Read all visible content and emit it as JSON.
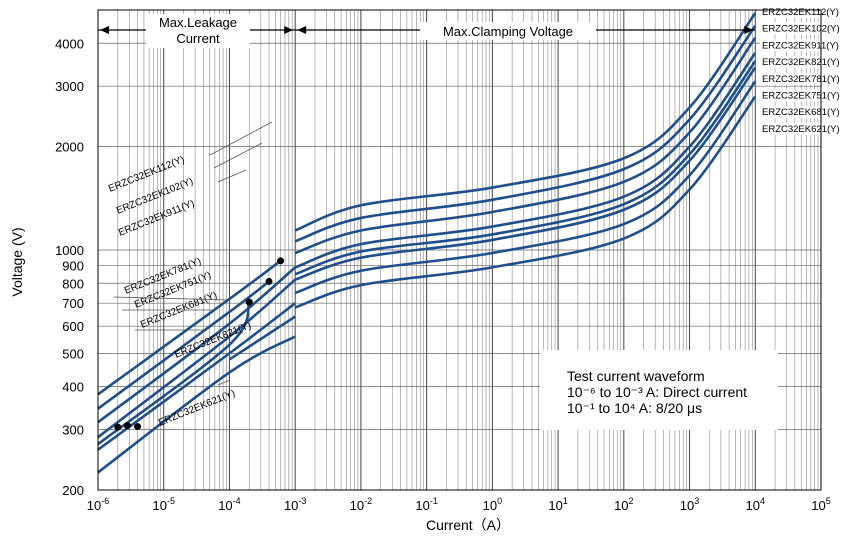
{
  "chart_data": {
    "type": "line",
    "title": "",
    "xlabel": "Current（A）",
    "ylabel": "Voltage (V)",
    "x_scale": "log",
    "y_scale": "log",
    "xlim": [
      1e-06,
      100000
    ],
    "ylim": [
      200,
      5000
    ],
    "x_ticks": [
      {
        "value": 1e-06,
        "base": "10",
        "exp": "-6"
      },
      {
        "value": 1e-05,
        "base": "10",
        "exp": "-5"
      },
      {
        "value": 0.0001,
        "base": "10",
        "exp": "-4"
      },
      {
        "value": 0.001,
        "base": "10",
        "exp": "-3"
      },
      {
        "value": 0.01,
        "base": "10",
        "exp": "-2"
      },
      {
        "value": 0.1,
        "base": "10",
        "exp": "-1"
      },
      {
        "value": 1,
        "base": "10",
        "exp": "0"
      },
      {
        "value": 10,
        "base": "10",
        "exp": "1"
      },
      {
        "value": 100,
        "base": "10",
        "exp": "2"
      },
      {
        "value": 1000,
        "base": "10",
        "exp": "3"
      },
      {
        "value": 10000,
        "base": "10",
        "exp": "4"
      },
      {
        "value": 100000,
        "base": "10",
        "exp": "5"
      }
    ],
    "y_ticks": [
      200,
      300,
      400,
      500,
      600,
      700,
      800,
      900,
      1000,
      2000,
      3000,
      4000
    ],
    "grid": true,
    "line_color": "#1f4e8c",
    "region_labels": {
      "leakage_line1": "Max.Leakage",
      "leakage_line2": "Current",
      "clamping": "Max.Clamping Voltage"
    },
    "note": {
      "line1": "Test current waveform",
      "line2": "10⁻⁶ to 10⁻³ A: Direct current",
      "line3": "10⁻¹ to 10⁴ A: 8/20 μs"
    },
    "leakage_series": [
      {
        "name": "ERZC32EK112(Y)",
        "points": [
          [
            1e-06,
            380
          ],
          [
            0.0001,
            720
          ],
          [
            0.0006,
            930
          ]
        ]
      },
      {
        "name": "ERZC32EK102(Y)",
        "points": [
          [
            1e-06,
            345
          ],
          [
            0.0001,
            660
          ],
          [
            0.0004,
            810
          ]
        ]
      },
      {
        "name": "ERZC32EK911(Y)",
        "points": [
          [
            1e-06,
            315
          ],
          [
            0.0001,
            610
          ],
          [
            0.001,
            890
          ]
        ]
      },
      {
        "name": "ERZC32EK781(Y)",
        "points": [
          [
            1e-06,
            285
          ],
          [
            0.0001,
            560
          ],
          [
            0.001,
            820
          ]
        ]
      },
      {
        "name": "ERZC32EK751(Y)",
        "points": [
          [
            1e-06,
            272
          ],
          [
            0.0001,
            530
          ],
          [
            0.0002,
            705
          ]
        ]
      },
      {
        "name": "ERZC32EK681(Y)",
        "points": [
          [
            1e-06,
            262
          ],
          [
            0.0001,
            500
          ],
          [
            0.001,
            700
          ]
        ]
      },
      {
        "name": "ERZC32EK821(Y)",
        "points": [
          [
            0.0001,
            480
          ],
          [
            0.001,
            640
          ]
        ]
      },
      {
        "name": "ERZC32EK621(Y)",
        "points": [
          [
            1e-06,
            225
          ],
          [
            0.0001,
            440
          ],
          [
            0.001,
            560
          ]
        ]
      }
    ],
    "leakage_dots": [
      [
        2e-06,
        305
      ],
      [
        2.8e-06,
        308
      ],
      [
        4e-06,
        306
      ],
      [
        0.0002,
        705
      ],
      [
        0.0004,
        810
      ],
      [
        0.0006,
        930
      ]
    ],
    "clamping_series": [
      {
        "name": "ERZC32EK112(Y)",
        "points": [
          [
            0.001,
            1140
          ],
          [
            0.01,
            1350
          ],
          [
            1,
            1520
          ],
          [
            100,
            1850
          ],
          [
            1000,
            2600
          ],
          [
            10000,
            4900
          ]
        ]
      },
      {
        "name": "ERZC32EK102(Y)",
        "points": [
          [
            0.001,
            1060
          ],
          [
            0.01,
            1240
          ],
          [
            1,
            1400
          ],
          [
            100,
            1720
          ],
          [
            1000,
            2400
          ],
          [
            10000,
            4500
          ]
        ]
      },
      {
        "name": "ERZC32EK911(Y)",
        "points": [
          [
            0.001,
            980
          ],
          [
            0.01,
            1140
          ],
          [
            1,
            1290
          ],
          [
            100,
            1580
          ],
          [
            1000,
            2200
          ],
          [
            10000,
            4150
          ]
        ]
      },
      {
        "name": "ERZC32EK821(Y)",
        "points": [
          [
            0.001,
            890
          ],
          [
            0.01,
            1040
          ],
          [
            1,
            1170
          ],
          [
            100,
            1430
          ],
          [
            1000,
            2000
          ],
          [
            10000,
            3750
          ]
        ]
      },
      {
        "name": "ERZC32EK781(Y)",
        "points": [
          [
            0.001,
            850
          ],
          [
            0.01,
            990
          ],
          [
            1,
            1110
          ],
          [
            100,
            1360
          ],
          [
            1000,
            1900
          ],
          [
            10000,
            3550
          ]
        ]
      },
      {
        "name": "ERZC32EK751(Y)",
        "points": [
          [
            0.001,
            820
          ],
          [
            0.01,
            950
          ],
          [
            1,
            1070
          ],
          [
            100,
            1310
          ],
          [
            1000,
            1820
          ],
          [
            10000,
            3400
          ]
        ]
      },
      {
        "name": "ERZC32EK681(Y)",
        "points": [
          [
            0.001,
            750
          ],
          [
            0.01,
            870
          ],
          [
            1,
            980
          ],
          [
            100,
            1190
          ],
          [
            1000,
            1650
          ],
          [
            10000,
            3100
          ]
        ]
      },
      {
        "name": "ERZC32EK621(Y)",
        "points": [
          [
            0.001,
            680
          ],
          [
            0.01,
            790
          ],
          [
            1,
            890
          ],
          [
            100,
            1080
          ],
          [
            1000,
            1500
          ],
          [
            10000,
            2800
          ]
        ]
      }
    ],
    "right_labels": [
      "ERZC32EK112(Y)",
      "ERZC32EK102(Y)",
      "ERZC32EK911(Y)",
      "ERZC32EK821(Y)",
      "ERZC32EK781(Y)",
      "ERZC32EK751(Y)",
      "ERZC32EK681(Y)",
      "ERZC32EK621(Y)"
    ],
    "left_labels": [
      "ERZC32EK112(Y)",
      "ERZC32EK102(Y)",
      "ERZC32EK911(Y)",
      "ERZC32EK781(Y)",
      "ERZC32EK751(Y)",
      "ERZC32EK681(Y)",
      "ERZC32EK821(Y)",
      "ERZC32EK621(Y)"
    ]
  }
}
